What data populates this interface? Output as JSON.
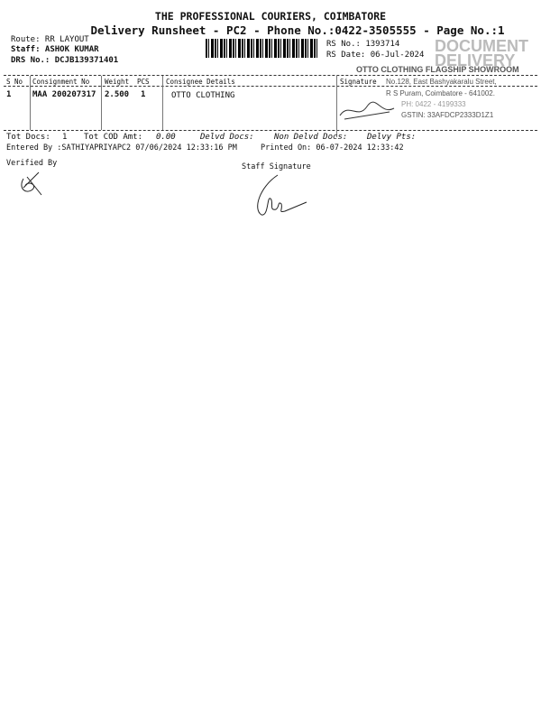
{
  "header": {
    "company": "THE PROFESSIONAL COURIERS, COIMBATORE",
    "subtitle": "Delivery Runsheet - PC2 - Phone No.:0422-3505555 - Page No.:1",
    "route": "Route: RR  LAYOUT",
    "staff": "Staff: ASHOK KUMAR",
    "drs": "DRS No.: DCJB139371401",
    "rs_no": "RS No.: 1393714",
    "rs_date": "RS Date: 06-Jul-2024"
  },
  "table": {
    "columns": [
      "S No",
      "Consignment No",
      "Weight",
      "PCS",
      "Consignee Details",
      "Signature"
    ],
    "rows": [
      {
        "sno": "1",
        "consignment": "MAA 200207317",
        "weight": "2.500",
        "pcs": "1",
        "consignee": "OTTO CLOTHING"
      }
    ]
  },
  "stamp": {
    "line1": "OTTO CLOTHING FLAGSHIP SHOWROOM",
    "line2": "No.128, East Bashyakaralu Street,",
    "line3": "R S Puram, Coimbatore - 641002.",
    "line4": "PH: 0422 - 4199333",
    "line5": "GSTIN: 33AFDCP2333D1Z1",
    "watermark": "DOCUMENT DELIVERY"
  },
  "totals": {
    "tot_docs_label": "Tot Docs:",
    "tot_docs": "1",
    "cod_label": "Tot COD Amt:",
    "cod": "0.00",
    "delvd_label": "Delvd Docs:",
    "non_delvd_label": "Non Delvd Docs:",
    "delvy_pts_label": "Delvy Pts:"
  },
  "footer": {
    "entered_by": "Entered By :SATHIYAPRIYAPC2 07/06/2024 12:33:16 PM",
    "printed_on": "Printed On: 06-07-2024 12:33:42",
    "verified_by": "Verified By",
    "staff_signature": "Staff Signature"
  }
}
